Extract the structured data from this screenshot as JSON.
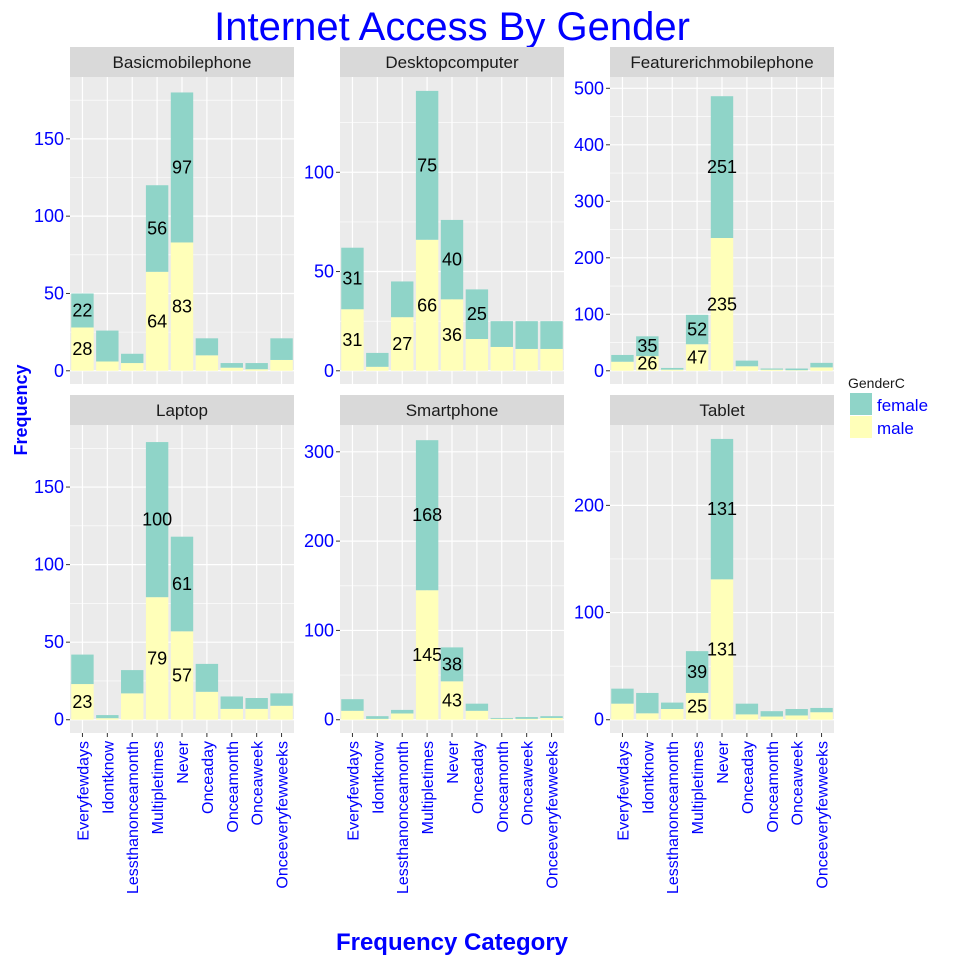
{
  "chart_data": {
    "type": "bar",
    "stacked": true,
    "title": "Internet Access  By Gender",
    "xlabel": "Frequency Category",
    "ylabel": "Frequency",
    "categories": [
      "Everyfewdays",
      "Idontknow",
      "Lessthanonceamonth",
      "Multipletimes",
      "Never",
      "Onceaday",
      "Onceamonth",
      "Onceaweek",
      "Onceeveryfewweeks"
    ],
    "legend": {
      "title": "GenderC",
      "position": "right",
      "entries": [
        {
          "name": "female",
          "color": "#8fd4c8"
        },
        {
          "name": "male",
          "color": "#ffffb9"
        }
      ]
    },
    "colors": {
      "title": "#0000ff",
      "axis_text": "#0000ff",
      "panel_bg": "#ebebeb",
      "strip_bg": "#d9d9d9",
      "grid": "#ffffff"
    },
    "grid": true,
    "panels": [
      {
        "name": "Basicmobilephone",
        "ylim": [
          0,
          190
        ],
        "yticks": [
          0,
          50,
          100,
          150
        ],
        "female": [
          22,
          20,
          6,
          56,
          97,
          11,
          3,
          4,
          14
        ],
        "male": [
          28,
          6,
          5,
          64,
          83,
          10,
          2,
          1,
          7
        ],
        "labels": {
          "female": [
            22,
            null,
            null,
            56,
            97,
            null,
            null,
            null,
            null
          ],
          "male": [
            28,
            null,
            null,
            64,
            83,
            null,
            null,
            null,
            null
          ]
        }
      },
      {
        "name": "Desktopcomputer",
        "ylim": [
          0,
          148
        ],
        "yticks": [
          0,
          50,
          100
        ],
        "female": [
          31,
          7,
          18,
          75,
          40,
          25,
          13,
          14,
          14
        ],
        "male": [
          31,
          2,
          27,
          66,
          36,
          16,
          12,
          11,
          11
        ],
        "labels": {
          "female": [
            31,
            null,
            null,
            75,
            40,
            25,
            null,
            null,
            null
          ],
          "male": [
            31,
            null,
            27,
            66,
            36,
            null,
            null,
            null,
            null
          ]
        }
      },
      {
        "name": "Featurerichmobilephone",
        "ylim": [
          0,
          520
        ],
        "yticks": [
          0,
          100,
          200,
          300,
          400,
          500
        ],
        "female": [
          12,
          35,
          3,
          52,
          251,
          10,
          2,
          3,
          8
        ],
        "male": [
          16,
          26,
          2,
          47,
          235,
          8,
          2,
          1,
          6
        ],
        "labels": {
          "female": [
            null,
            35,
            null,
            52,
            251,
            null,
            null,
            null,
            null
          ],
          "male": [
            null,
            26,
            null,
            47,
            235,
            null,
            null,
            null,
            null
          ]
        }
      },
      {
        "name": "Laptop",
        "ylim": [
          0,
          190
        ],
        "yticks": [
          0,
          50,
          100,
          150
        ],
        "female": [
          19,
          2,
          15,
          100,
          61,
          18,
          8,
          7,
          8
        ],
        "male": [
          23,
          1,
          17,
          79,
          57,
          18,
          7,
          7,
          9
        ],
        "labels": {
          "female": [
            null,
            null,
            null,
            100,
            61,
            null,
            null,
            null,
            null
          ],
          "male": [
            23,
            null,
            null,
            79,
            57,
            null,
            null,
            null,
            null
          ]
        }
      },
      {
        "name": "Smartphone",
        "ylim": [
          0,
          330
        ],
        "yticks": [
          0,
          100,
          200,
          300
        ],
        "female": [
          13,
          3,
          4,
          168,
          38,
          8,
          1,
          2,
          2
        ],
        "male": [
          10,
          1,
          7,
          145,
          43,
          10,
          1,
          1,
          2
        ],
        "labels": {
          "female": [
            null,
            null,
            null,
            168,
            38,
            null,
            null,
            null,
            null
          ],
          "male": [
            null,
            null,
            null,
            145,
            43,
            null,
            null,
            null,
            null
          ]
        }
      },
      {
        "name": "Tablet",
        "ylim": [
          0,
          275
        ],
        "yticks": [
          0,
          100,
          200
        ],
        "female": [
          14,
          19,
          6,
          39,
          131,
          10,
          5,
          6,
          4
        ],
        "male": [
          15,
          6,
          10,
          25,
          131,
          5,
          3,
          4,
          7
        ],
        "labels": {
          "female": [
            null,
            null,
            null,
            39,
            131,
            null,
            null,
            null,
            null
          ],
          "male": [
            null,
            null,
            null,
            25,
            131,
            null,
            null,
            null,
            null
          ]
        }
      }
    ]
  }
}
